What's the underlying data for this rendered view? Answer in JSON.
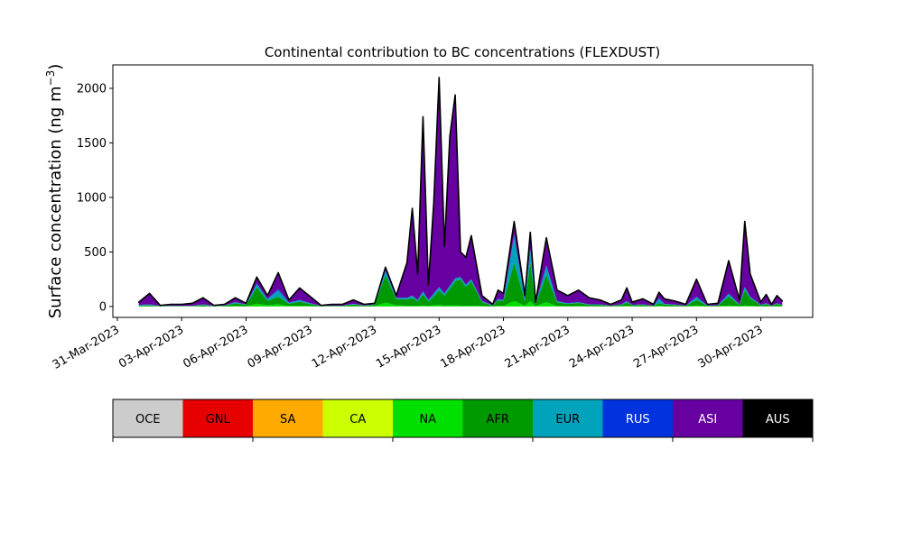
{
  "chart_data": {
    "type": "stacked_area",
    "title": "Continental contribution to BC concentrations (FLEXDUST)",
    "ylabel": [
      "Surface concentration (ng m",
      "−3",
      ")"
    ],
    "x": [
      "2023-04-01T00:00",
      "2023-04-01T12:00",
      "2023-04-02T00:00",
      "2023-04-02T12:00",
      "2023-04-03T00:00",
      "2023-04-03T12:00",
      "2023-04-04T00:00",
      "2023-04-04T12:00",
      "2023-04-05T00:00",
      "2023-04-05T12:00",
      "2023-04-06T00:00",
      "2023-04-06T12:00",
      "2023-04-07T00:00",
      "2023-04-07T12:00",
      "2023-04-08T00:00",
      "2023-04-08T12:00",
      "2023-04-09T00:00",
      "2023-04-09T12:00",
      "2023-04-10T00:00",
      "2023-04-10T12:00",
      "2023-04-11T00:00",
      "2023-04-11T12:00",
      "2023-04-12T00:00",
      "2023-04-12T12:00",
      "2023-04-13T00:00",
      "2023-04-13T12:00",
      "2023-04-13T18:00",
      "2023-04-14T00:00",
      "2023-04-14T06:00",
      "2023-04-14T12:00",
      "2023-04-14T18:00",
      "2023-04-15T00:00",
      "2023-04-15T06:00",
      "2023-04-15T12:00",
      "2023-04-15T18:00",
      "2023-04-16T00:00",
      "2023-04-16T06:00",
      "2023-04-16T12:00",
      "2023-04-17T00:00",
      "2023-04-17T12:00",
      "2023-04-17T18:00",
      "2023-04-18T00:00",
      "2023-04-18T12:00",
      "2023-04-19T00:00",
      "2023-04-19T06:00",
      "2023-04-19T12:00",
      "2023-04-20T00:00",
      "2023-04-20T12:00",
      "2023-04-21T00:00",
      "2023-04-21T12:00",
      "2023-04-22T00:00",
      "2023-04-22T12:00",
      "2023-04-23T00:00",
      "2023-04-23T12:00",
      "2023-04-23T18:00",
      "2023-04-24T00:00",
      "2023-04-24T12:00",
      "2023-04-25T00:00",
      "2023-04-25T06:00",
      "2023-04-25T12:00",
      "2023-04-26T00:00",
      "2023-04-26T12:00",
      "2023-04-27T00:00",
      "2023-04-27T12:00",
      "2023-04-28T00:00",
      "2023-04-28T12:00",
      "2023-04-29T00:00",
      "2023-04-29T06:00",
      "2023-04-29T12:00",
      "2023-04-30T00:00",
      "2023-04-30T06:00",
      "2023-04-30T12:00",
      "2023-04-30T18:00",
      "2023-05-01T00:00"
    ],
    "series": [
      {
        "name": "OCE",
        "color": "#cccccc",
        "values": [
          0,
          0,
          0,
          0,
          0,
          0,
          0,
          0,
          0,
          0,
          0,
          0,
          0,
          0,
          0,
          0,
          0,
          0,
          0,
          0,
          0,
          0,
          0,
          0,
          0,
          0,
          0,
          0,
          0,
          0,
          0,
          0,
          0,
          0,
          0,
          0,
          0,
          0,
          0,
          0,
          0,
          0,
          0,
          0,
          0,
          0,
          0,
          0,
          0,
          0,
          0,
          0,
          0,
          0,
          0,
          0,
          0,
          0,
          0,
          0,
          0,
          0,
          0,
          0,
          0,
          0,
          0,
          0,
          0,
          0,
          0,
          0,
          0,
          0
        ]
      },
      {
        "name": "GNL",
        "color": "#e60000",
        "values": [
          0,
          0,
          0,
          0,
          0,
          0,
          0,
          0,
          0,
          0,
          0,
          0,
          0,
          0,
          0,
          0,
          0,
          0,
          0,
          0,
          0,
          0,
          0,
          0,
          0,
          0,
          0,
          0,
          0,
          0,
          0,
          0,
          0,
          0,
          0,
          0,
          0,
          0,
          0,
          0,
          0,
          0,
          0,
          0,
          0,
          0,
          0,
          0,
          0,
          0,
          0,
          0,
          0,
          0,
          0,
          0,
          0,
          0,
          0,
          0,
          0,
          0,
          0,
          0,
          0,
          0,
          0,
          0,
          0,
          0,
          0,
          0,
          0,
          0
        ]
      },
      {
        "name": "SA",
        "color": "#ffaa00",
        "values": [
          0,
          0,
          0,
          0,
          0,
          0,
          0,
          0,
          0,
          0,
          0,
          0,
          0,
          0,
          0,
          0,
          0,
          0,
          0,
          0,
          0,
          0,
          0,
          0,
          0,
          0,
          0,
          0,
          0,
          0,
          0,
          0,
          0,
          0,
          0,
          0,
          0,
          0,
          0,
          0,
          0,
          0,
          0,
          0,
          0,
          0,
          0,
          0,
          0,
          0,
          0,
          0,
          0,
          0,
          0,
          0,
          0,
          0,
          0,
          0,
          0,
          0,
          0,
          0,
          0,
          0,
          0,
          0,
          0,
          0,
          0,
          0,
          0,
          0
        ]
      },
      {
        "name": "CA",
        "color": "#ccff00",
        "values": [
          0,
          0,
          0,
          0,
          0,
          0,
          0,
          0,
          0,
          0,
          0,
          0,
          0,
          0,
          0,
          0,
          0,
          0,
          0,
          0,
          0,
          0,
          0,
          0,
          0,
          0,
          0,
          0,
          0,
          0,
          0,
          0,
          0,
          0,
          0,
          0,
          0,
          0,
          0,
          0,
          0,
          0,
          0,
          0,
          0,
          0,
          0,
          0,
          0,
          0,
          0,
          0,
          0,
          0,
          0,
          0,
          0,
          0,
          0,
          0,
          0,
          0,
          0,
          0,
          0,
          0,
          0,
          0,
          0,
          0,
          0,
          0,
          0,
          0
        ]
      },
      {
        "name": "NA",
        "color": "#00e000",
        "values": [
          3,
          3,
          1,
          1,
          1,
          1,
          3,
          1,
          2,
          4,
          3,
          25,
          12,
          20,
          5,
          8,
          4,
          1,
          1,
          1,
          3,
          2,
          4,
          35,
          12,
          8,
          8,
          6,
          12,
          6,
          12,
          15,
          8,
          12,
          12,
          8,
          8,
          8,
          4,
          2,
          6,
          4,
          50,
          7,
          50,
          4,
          40,
          4,
          3,
          4,
          2,
          2,
          1,
          3,
          6,
          2,
          3,
          1,
          10,
          3,
          2,
          1,
          10,
          2,
          2,
          10,
          3,
          10,
          6,
          2,
          3,
          1,
          3,
          2
        ]
      },
      {
        "name": "AFR",
        "color": "#009900",
        "values": [
          5,
          8,
          2,
          3,
          3,
          4,
          10,
          2,
          5,
          25,
          12,
          150,
          40,
          70,
          20,
          35,
          18,
          3,
          5,
          5,
          15,
          6,
          12,
          250,
          55,
          55,
          70,
          40,
          100,
          40,
          80,
          130,
          90,
          150,
          220,
          240,
          170,
          220,
          35,
          7,
          50,
          45,
          350,
          40,
          350,
          15,
          250,
          35,
          20,
          28,
          13,
          13,
          5,
          12,
          30,
          9,
          12,
          5,
          20,
          15,
          12,
          5,
          50,
          6,
          7,
          80,
          12,
          140,
          70,
          9,
          20,
          5,
          20,
          10
        ]
      },
      {
        "name": "EUR",
        "color": "#00a3bb",
        "values": [
          5,
          7,
          2,
          2,
          2,
          3,
          6,
          2,
          3,
          10,
          5,
          30,
          15,
          60,
          8,
          15,
          7,
          1,
          2,
          2,
          6,
          2,
          4,
          40,
          12,
          15,
          20,
          12,
          25,
          12,
          25,
          30,
          20,
          25,
          25,
          20,
          20,
          20,
          10,
          3,
          12,
          10,
          250,
          12,
          120,
          6,
          80,
          10,
          7,
          8,
          5,
          5,
          2,
          5,
          12,
          4,
          5,
          2,
          40,
          6,
          4,
          2,
          25,
          2,
          3,
          25,
          5,
          25,
          12,
          4,
          6,
          2,
          6,
          3
        ]
      },
      {
        "name": "RUS",
        "color": "#0033dd",
        "values": [
          2,
          2,
          0,
          0,
          0,
          0,
          1,
          0,
          0,
          1,
          0,
          5,
          3,
          10,
          2,
          2,
          1,
          0,
          0,
          0,
          1,
          0,
          0,
          5,
          1,
          2,
          2,
          2,
          3,
          2,
          3,
          5,
          2,
          3,
          3,
          2,
          2,
          2,
          1,
          0,
          2,
          1,
          10,
          1,
          10,
          0,
          10,
          1,
          0,
          0,
          0,
          0,
          0,
          0,
          2,
          0,
          0,
          0,
          10,
          1,
          0,
          0,
          5,
          0,
          0,
          5,
          0,
          5,
          2,
          0,
          1,
          0,
          1,
          0
        ]
      },
      {
        "name": "ASI",
        "color": "#6600a0",
        "values": [
          25,
          100,
          5,
          14,
          14,
          22,
          60,
          5,
          10,
          40,
          10,
          60,
          30,
          150,
          25,
          110,
          60,
          5,
          12,
          12,
          35,
          10,
          10,
          30,
          20,
          320,
          800,
          240,
          1600,
          140,
          830,
          1920,
          430,
          1370,
          1680,
          230,
          250,
          400,
          50,
          8,
          80,
          60,
          120,
          40,
          150,
          15,
          250,
          100,
          70,
          110,
          60,
          40,
          12,
          40,
          120,
          25,
          50,
          12,
          50,
          45,
          32,
          12,
          160,
          10,
          18,
          300,
          40,
          600,
          210,
          25,
          80,
          12,
          70,
          35
        ]
      },
      {
        "name": "AUS",
        "color": "#000000",
        "values": [
          0,
          0,
          0,
          0,
          0,
          0,
          0,
          0,
          0,
          0,
          0,
          0,
          0,
          0,
          0,
          0,
          0,
          0,
          0,
          0,
          0,
          0,
          0,
          0,
          0,
          0,
          0,
          0,
          0,
          0,
          0,
          0,
          0,
          0,
          0,
          0,
          0,
          0,
          0,
          0,
          0,
          0,
          0,
          0,
          0,
          0,
          0,
          0,
          0,
          0,
          0,
          0,
          0,
          0,
          0,
          0,
          0,
          0,
          0,
          0,
          0,
          0,
          0,
          0,
          0,
          0,
          0,
          0,
          0,
          0,
          0,
          0,
          0,
          0
        ]
      }
    ],
    "xlim": [
      "2023-03-30T19:00",
      "2023-05-02T10:00"
    ],
    "xticks": [
      {
        "value": "2023-03-31T00:00",
        "label": "31-Mar-2023"
      },
      {
        "value": "2023-04-03T00:00",
        "label": "03-Apr-2023"
      },
      {
        "value": "2023-04-06T00:00",
        "label": "06-Apr-2023"
      },
      {
        "value": "2023-04-09T00:00",
        "label": "09-Apr-2023"
      },
      {
        "value": "2023-04-12T00:00",
        "label": "12-Apr-2023"
      },
      {
        "value": "2023-04-15T00:00",
        "label": "15-Apr-2023"
      },
      {
        "value": "2023-04-18T00:00",
        "label": "18-Apr-2023"
      },
      {
        "value": "2023-04-21T00:00",
        "label": "21-Apr-2023"
      },
      {
        "value": "2023-04-24T00:00",
        "label": "24-Apr-2023"
      },
      {
        "value": "2023-04-27T00:00",
        "label": "27-Apr-2023"
      },
      {
        "value": "2023-04-30T00:00",
        "label": "30-Apr-2023"
      }
    ],
    "ylim": [
      -100,
      2215
    ],
    "yticks": [
      0,
      500,
      1000,
      1500,
      2000
    ],
    "legend": "colorbar-below"
  }
}
